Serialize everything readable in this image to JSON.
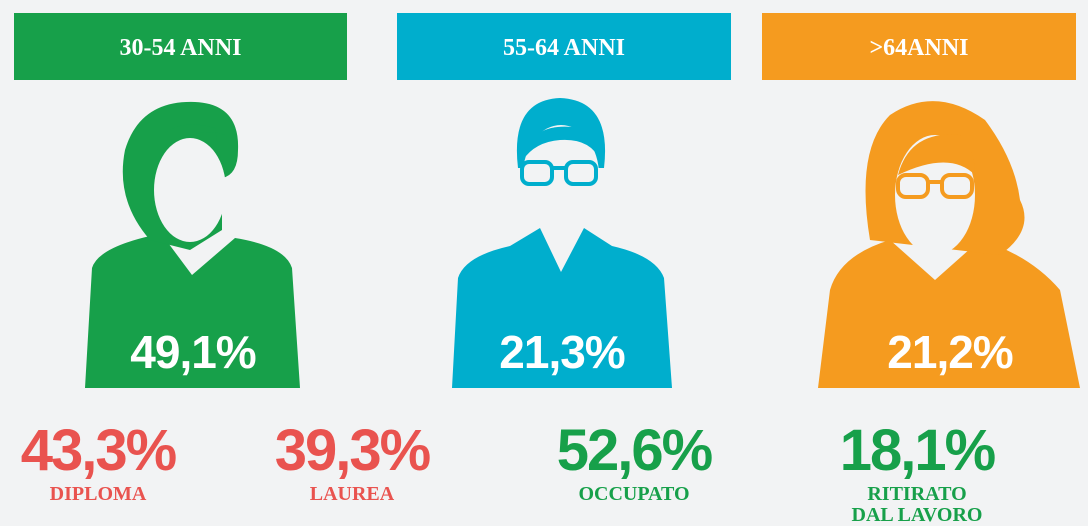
{
  "groups": [
    {
      "header": "30-54 ANNI",
      "share": "49,1%",
      "color": "#17a04a",
      "stats": [
        {
          "value": "43,3%",
          "label": [
            "DIPLOMA"
          ],
          "color": "#e9534f"
        },
        {
          "value": "39,3%",
          "label": [
            "LAUREA"
          ],
          "color": "#e9534f"
        }
      ]
    },
    {
      "header": "55-64 ANNI",
      "share": "21,3%",
      "color": "#00aecd",
      "stats": [
        {
          "value": "52,6%",
          "label": [
            "OCCUPATO"
          ],
          "color": "#17a04a"
        }
      ]
    },
    {
      "header": ">64ANNI",
      "share": "21,2%",
      "color": "#f59b1f",
      "stats": [
        {
          "value": "18,1%",
          "label": [
            "RITIRATO",
            "DAL LAVORO"
          ],
          "color": "#17a04a"
        }
      ]
    }
  ]
}
